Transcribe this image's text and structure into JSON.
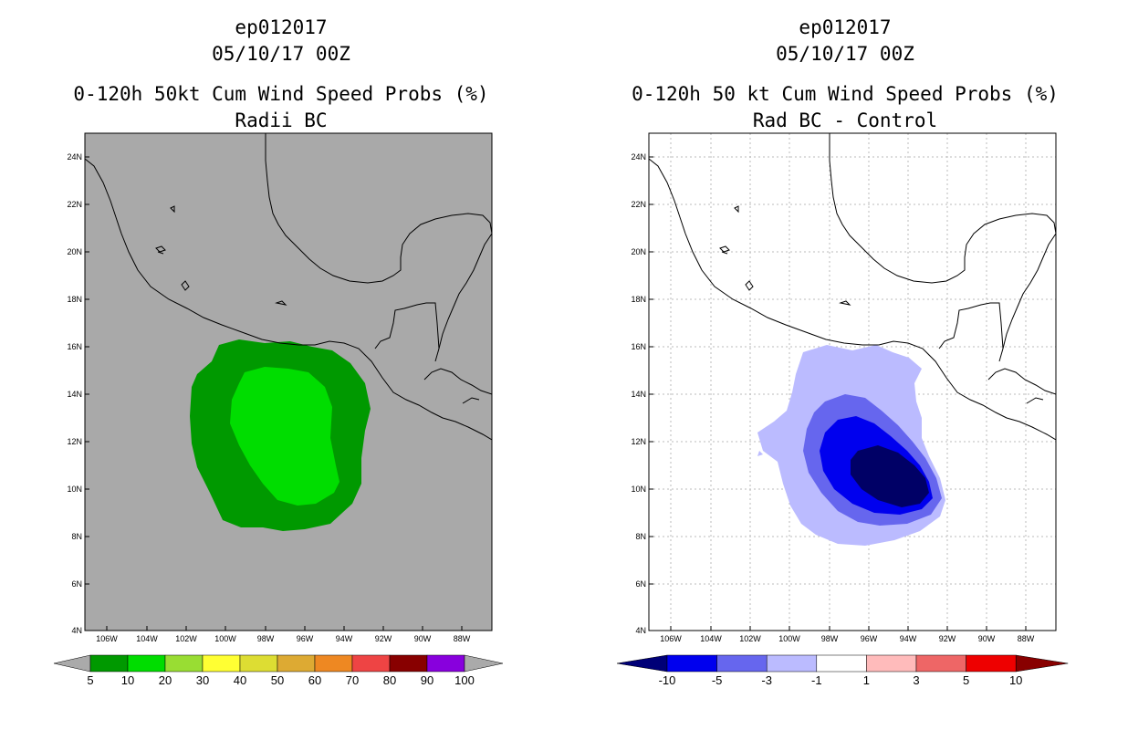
{
  "left": {
    "storm": "ep012017",
    "date": "05/10/17 00Z",
    "title": "0-120h 50kt Cum Wind Speed Probs (%)",
    "subtitle": "Radii BC",
    "background": "#a9a9a9",
    "colorbar": {
      "labels": [
        "5",
        "10",
        "20",
        "30",
        "40",
        "50",
        "60",
        "70",
        "80",
        "90",
        "100"
      ],
      "colors": [
        "#009900",
        "#00dd00",
        "#99dd33",
        "#ffff33",
        "#dddd33",
        "#ddaa33",
        "#ee8822",
        "#ee4444",
        "#880000",
        "#8800dd"
      ],
      "end_color": "#aaaaaa"
    }
  },
  "right": {
    "storm": "ep012017",
    "date": "05/10/17 00Z",
    "title": "0-120h 50 kt Cum Wind Speed Probs (%)",
    "subtitle": "Rad BC - Control",
    "background": "#ffffff",
    "colorbar": {
      "labels": [
        "-10",
        "-5",
        "-3",
        "-1",
        "1",
        "3",
        "5",
        "10"
      ],
      "colors": [
        "#0000ee",
        "#6666ee",
        "#bbbbff",
        "#ffffff",
        "#ffbbbb",
        "#ee6666",
        "#ee0000"
      ],
      "left_end_color": "#000077",
      "right_end_color": "#880000"
    }
  },
  "axes": {
    "lat_labels": [
      "24N",
      "22N",
      "20N",
      "18N",
      "16N",
      "14N",
      "12N",
      "10N",
      "8N",
      "6N",
      "4N"
    ],
    "lon_labels": [
      "106W",
      "104W",
      "102W",
      "100W",
      "98W",
      "96W",
      "94W",
      "92W",
      "90W",
      "88W"
    ]
  }
}
